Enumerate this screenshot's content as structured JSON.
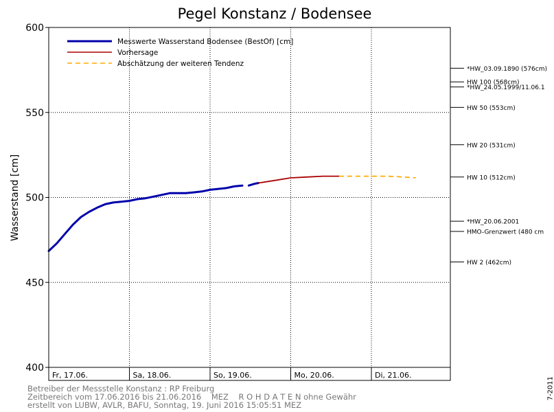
{
  "chart_data": {
    "type": "line",
    "title": "Pegel Konstanz / Bodensee",
    "ylabel": "Wasserstand [cm]",
    "xlabel": "",
    "ylim": [
      400,
      600
    ],
    "yticks": [
      400,
      450,
      500,
      550,
      600
    ],
    "xlim": [
      0,
      5
    ],
    "x_unit": "days since Fr, 17.06. 00:00",
    "x_tick_labels": [
      {
        "x": 0,
        "label": "Fr, 17.06."
      },
      {
        "x": 1,
        "label": "Sa, 18.06."
      },
      {
        "x": 2,
        "label": "So, 19.06."
      },
      {
        "x": 3,
        "label": "Mo, 20.06."
      },
      {
        "x": 4,
        "label": "Di, 21.06."
      }
    ],
    "grid": true,
    "legend_position": "top-left",
    "series": [
      {
        "name": "Messwerte Wasserstand Bodensee  (BestOf) [cm]",
        "style": "solid-thick",
        "color": "#0000aa",
        "points": [
          [
            0.0,
            468.5
          ],
          [
            0.1,
            473
          ],
          [
            0.2,
            478.5
          ],
          [
            0.3,
            484
          ],
          [
            0.4,
            488.5
          ],
          [
            0.5,
            491.5
          ],
          [
            0.6,
            494
          ],
          [
            0.7,
            496
          ],
          [
            0.8,
            497
          ],
          [
            0.9,
            497.5
          ],
          [
            1.0,
            498
          ],
          [
            1.1,
            499
          ],
          [
            1.2,
            499.5
          ],
          [
            1.3,
            500.5
          ],
          [
            1.4,
            501.5
          ],
          [
            1.5,
            502.5
          ],
          [
            1.6,
            502.5
          ],
          [
            1.7,
            502.5
          ],
          [
            1.8,
            503
          ],
          [
            1.9,
            503.5
          ],
          [
            2.0,
            504.5
          ],
          [
            2.1,
            505
          ],
          [
            2.2,
            505.5
          ],
          [
            2.3,
            506.5
          ],
          [
            2.4,
            507
          ]
        ]
      },
      {
        "name": "Messwerte Wasserstand Bodensee  (BestOf) [cm]",
        "style": "solid-thick",
        "color": "#0000aa",
        "points": [
          [
            2.48,
            507
          ],
          [
            2.55,
            508
          ],
          [
            2.6,
            508.5
          ]
        ]
      },
      {
        "name": "Vorhersage",
        "style": "solid",
        "color": "#aa0000",
        "points": [
          [
            2.6,
            508.5
          ],
          [
            2.8,
            510
          ],
          [
            3.0,
            511.5
          ],
          [
            3.2,
            512
          ],
          [
            3.4,
            512.5
          ],
          [
            3.6,
            512.5
          ]
        ]
      },
      {
        "name": "Abschätzung der weiteren Tendenz",
        "style": "dashed",
        "color": "#ffaa00",
        "points": [
          [
            3.6,
            512.5
          ],
          [
            3.8,
            512.5
          ],
          [
            4.0,
            512.5
          ],
          [
            4.2,
            512.5
          ],
          [
            4.4,
            512
          ],
          [
            4.55,
            511.5
          ]
        ]
      }
    ],
    "annotations": [
      {
        "label": "*HW_03.09.1890 (576cm)",
        "y": 576
      },
      {
        "label": "HW 100 (568cm)",
        "y": 568
      },
      {
        "label": "*HW_24.05.1999/11.06.1",
        "y": 565
      },
      {
        "label": "HW 50 (553cm)",
        "y": 553
      },
      {
        "label": "HW 20 (531cm)",
        "y": 531
      },
      {
        "label": "HW 10 (512cm)",
        "y": 512
      },
      {
        "label": "*HW_20.06.2001",
        "y": 486
      },
      {
        "label": "HMO-Grenzwert (480 cm",
        "y": 480
      },
      {
        "label": "HW 2 (462cm)",
        "y": 462
      }
    ]
  },
  "footer": {
    "line1": "Betreiber der Messstelle Konstanz : RP Freiburg",
    "line2": "Zeitbereich vom 17.06.2016 bis 21.06.2016    MEZ    R O H D A T E N ohne Gewähr",
    "line3": "erstellt von LUBW, AVLR, BAFU, Sonntag, 19. Juni 2016 15:05:51 MEZ"
  },
  "side_label": "7-2011"
}
